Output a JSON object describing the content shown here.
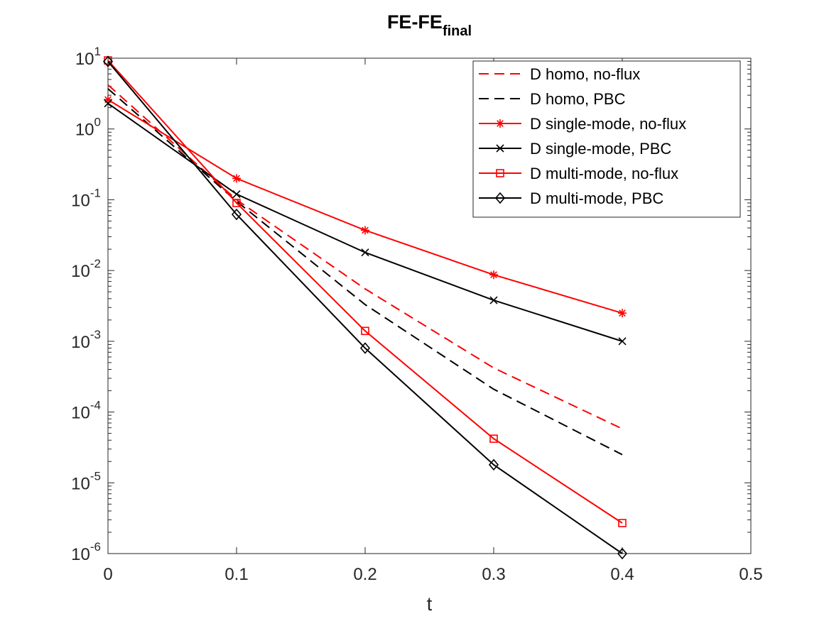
{
  "chart_data": {
    "type": "line",
    "title": "FE-FE",
    "title_subscript": "final",
    "xlabel": "t",
    "ylabel": "",
    "xlim": [
      0,
      0.5
    ],
    "ylim": [
      1e-06,
      10
    ],
    "yscale": "log",
    "x_ticks": [
      0,
      0.1,
      0.2,
      0.3,
      0.4,
      0.5
    ],
    "x_tick_labels": [
      "0",
      "0.1",
      "0.2",
      "0.3",
      "0.4",
      "0.5"
    ],
    "y_ticks": [
      {
        "value": 10,
        "mantissa": "10",
        "exponent": "1"
      },
      {
        "value": 1,
        "mantissa": "10",
        "exponent": "0"
      },
      {
        "value": 0.1,
        "mantissa": "10",
        "exponent": "-1"
      },
      {
        "value": 0.01,
        "mantissa": "10",
        "exponent": "-2"
      },
      {
        "value": 0.001,
        "mantissa": "10",
        "exponent": "-3"
      },
      {
        "value": 0.0001,
        "mantissa": "10",
        "exponent": "-4"
      },
      {
        "value": 1e-05,
        "mantissa": "10",
        "exponent": "-5"
      },
      {
        "value": 1e-06,
        "mantissa": "10",
        "exponent": "-6"
      }
    ],
    "legend_position": "top-right",
    "series": [
      {
        "name": "D homo, no-flux",
        "color": "#ff0000",
        "dash": "dashed",
        "marker": "none",
        "x": [
          0,
          0.1,
          0.2,
          0.3,
          0.4
        ],
        "y": [
          4.2,
          0.1,
          0.0055,
          0.00042,
          5.8e-05
        ]
      },
      {
        "name": "D homo, PBC",
        "color": "#000000",
        "dash": "dashed",
        "marker": "none",
        "x": [
          0,
          0.1,
          0.2,
          0.3,
          0.4
        ],
        "y": [
          3.7,
          0.095,
          0.0033,
          0.00021,
          2.5e-05
        ]
      },
      {
        "name": "D single-mode, no-flux",
        "color": "#ff0000",
        "dash": "solid",
        "marker": "asterisk",
        "x": [
          0,
          0.1,
          0.2,
          0.3,
          0.4
        ],
        "y": [
          2.6,
          0.2,
          0.037,
          0.0087,
          0.0025
        ]
      },
      {
        "name": "D single-mode, PBC",
        "color": "#000000",
        "dash": "solid",
        "marker": "x",
        "x": [
          0,
          0.1,
          0.2,
          0.3,
          0.4
        ],
        "y": [
          2.3,
          0.12,
          0.018,
          0.0038,
          0.001
        ]
      },
      {
        "name": "D multi-mode, no-flux",
        "color": "#ff0000",
        "dash": "solid",
        "marker": "square",
        "x": [
          0,
          0.1,
          0.2,
          0.3,
          0.4
        ],
        "y": [
          9.3,
          0.09,
          0.0014,
          4.2e-05,
          2.7e-06
        ]
      },
      {
        "name": "D multi-mode, PBC",
        "color": "#000000",
        "dash": "solid",
        "marker": "diamond",
        "x": [
          0,
          0.1,
          0.2,
          0.3,
          0.4
        ],
        "y": [
          9.0,
          0.062,
          0.0008,
          1.8e-05,
          1e-06
        ]
      }
    ]
  }
}
